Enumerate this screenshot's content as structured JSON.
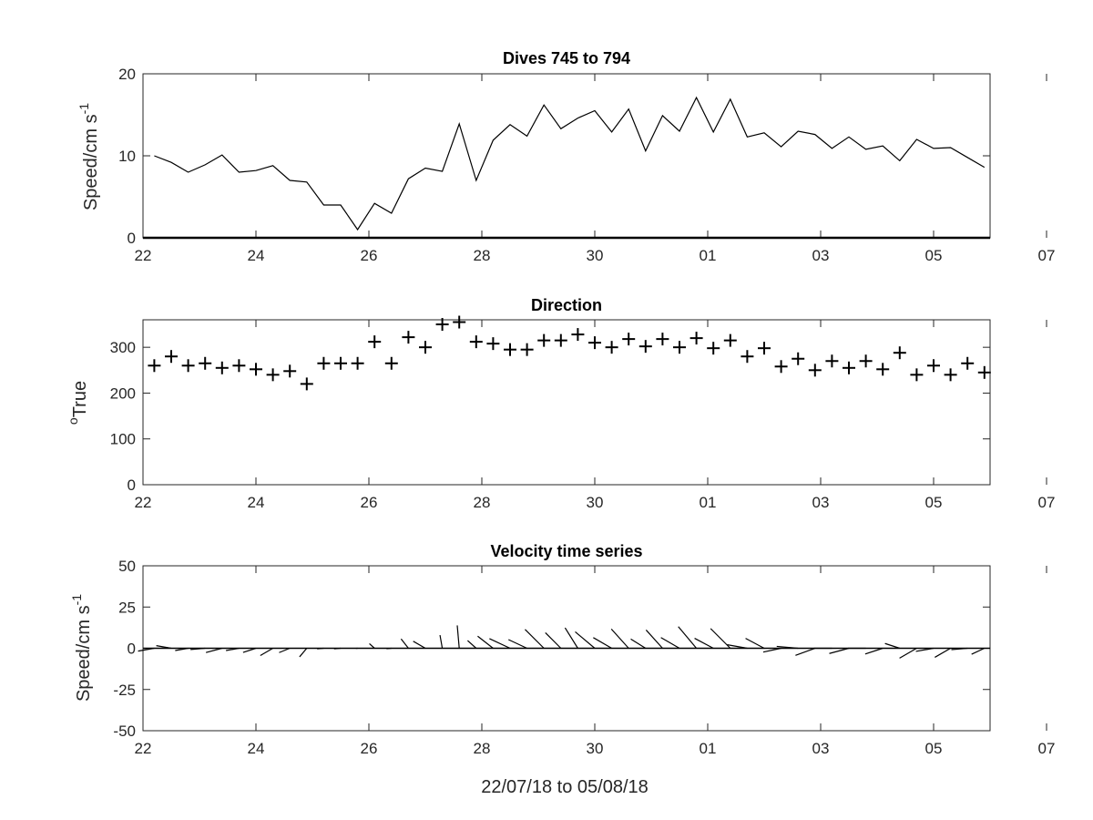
{
  "chart_data": [
    {
      "type": "line",
      "title": "Dives 745 to 794",
      "ylabel": "Speed/cm s",
      "ylabel_superscript": "-1",
      "ylim": [
        0,
        20
      ],
      "yticks": [
        0,
        10,
        20
      ],
      "xlim_days": [
        22,
        37
      ],
      "xticks": [
        "22",
        "24",
        "26",
        "28",
        "30",
        "01",
        "03",
        "05",
        "07"
      ],
      "grid": false,
      "series": [
        {
          "x": [
            22.2,
            22.5,
            22.8,
            23.1,
            23.4,
            23.7,
            24.0,
            24.3,
            24.6,
            24.9,
            25.2,
            25.5,
            25.8,
            26.1,
            26.4,
            26.7,
            27.0,
            27.3,
            27.6,
            27.9,
            28.2,
            28.5,
            28.8,
            29.1,
            29.4,
            29.7,
            30.0,
            30.3,
            30.6,
            30.9,
            31.2,
            31.5,
            31.8,
            32.1,
            32.4,
            32.7,
            33.0,
            33.3,
            33.6,
            33.9,
            34.2,
            34.5,
            34.8,
            35.1,
            35.4,
            35.7,
            36.0,
            36.3,
            36.6,
            36.9
          ],
          "values": [
            10.0,
            9.2,
            8.0,
            8.9,
            10.1,
            8.0,
            8.2,
            8.8,
            7.0,
            6.8,
            4.0,
            4.0,
            1.0,
            4.2,
            3.0,
            7.2,
            8.5,
            8.1,
            13.9,
            7.0,
            11.9,
            13.8,
            12.4,
            16.2,
            13.3,
            14.6,
            15.5,
            12.9,
            15.7,
            10.6,
            14.9,
            13.0,
            17.1,
            12.9,
            16.9,
            12.3,
            12.8,
            11.1,
            13.0,
            12.6,
            10.9,
            12.3,
            10.8,
            11.2,
            9.4,
            12.0,
            10.9,
            11.0,
            9.8,
            8.6
          ]
        }
      ]
    },
    {
      "type": "scatter",
      "title": "Direction",
      "ylabel": "True",
      "ylabel_prefix": "o",
      "ylim": [
        0,
        360
      ],
      "yticks": [
        0,
        100,
        200,
        300
      ],
      "xlim_days": [
        22,
        37
      ],
      "xticks": [
        "22",
        "24",
        "26",
        "28",
        "30",
        "01",
        "03",
        "05",
        "07"
      ],
      "marker": "+",
      "grid": false,
      "series": [
        {
          "x": [
            22.2,
            22.5,
            22.8,
            23.1,
            23.4,
            23.7,
            24.0,
            24.3,
            24.6,
            24.9,
            25.2,
            25.5,
            25.8,
            26.1,
            26.4,
            26.7,
            27.0,
            27.3,
            27.6,
            27.9,
            28.2,
            28.5,
            28.8,
            29.1,
            29.4,
            29.7,
            30.0,
            30.3,
            30.6,
            30.9,
            31.2,
            31.5,
            31.8,
            32.1,
            32.4,
            32.7,
            33.0,
            33.3,
            33.6,
            33.9,
            34.2,
            34.5,
            34.8,
            35.1,
            35.4,
            35.7,
            36.0,
            36.3,
            36.6,
            36.9
          ],
          "values": [
            260,
            280,
            260,
            265,
            255,
            260,
            252,
            240,
            248,
            220,
            265,
            265,
            265,
            312,
            265,
            322,
            300,
            350,
            355,
            312,
            308,
            295,
            295,
            315,
            315,
            328,
            310,
            300,
            318,
            302,
            318,
            300,
            320,
            298,
            315,
            280,
            298,
            258,
            275,
            250,
            270,
            255,
            270,
            252,
            288,
            240,
            260,
            240,
            265,
            245
          ]
        }
      ]
    },
    {
      "type": "line",
      "subtype": "stick-vectors",
      "title": "Velocity time series",
      "ylabel": "Speed/cm s",
      "ylabel_superscript": "-1",
      "xlabel": "22/07/18 to 05/08/18",
      "ylim": [
        -50,
        50
      ],
      "yticks": [
        -50,
        -25,
        0,
        25,
        50
      ],
      "xlim_days": [
        22,
        37
      ],
      "xticks": [
        "22",
        "24",
        "26",
        "28",
        "30",
        "01",
        "03",
        "05",
        "07"
      ],
      "grid": false,
      "series": [
        {
          "x": [
            22.2,
            22.5,
            22.8,
            23.1,
            23.4,
            23.7,
            24.0,
            24.3,
            24.6,
            24.9,
            25.2,
            25.5,
            25.8,
            26.1,
            26.4,
            26.7,
            27.0,
            27.3,
            27.6,
            27.9,
            28.2,
            28.5,
            28.8,
            29.1,
            29.4,
            29.7,
            30.0,
            30.3,
            30.6,
            30.9,
            31.2,
            31.5,
            31.8,
            32.1,
            32.4,
            32.7,
            33.0,
            33.3,
            33.6,
            33.9,
            34.2,
            34.5,
            34.8,
            35.1,
            35.4,
            35.7,
            36.0,
            36.3,
            36.6,
            36.9
          ],
          "speed": [
            10.0,
            9.2,
            8.0,
            8.9,
            10.1,
            8.0,
            8.2,
            8.8,
            7.0,
            6.8,
            4.0,
            4.0,
            1.0,
            4.2,
            3.0,
            7.2,
            8.5,
            8.1,
            13.9,
            7.0,
            11.9,
            13.8,
            12.4,
            16.2,
            13.3,
            14.6,
            15.5,
            12.9,
            15.7,
            10.6,
            14.9,
            13.0,
            17.1,
            12.9,
            16.9,
            12.3,
            12.8,
            11.1,
            13.0,
            12.6,
            10.9,
            12.3,
            10.8,
            11.2,
            9.4,
            12.0,
            10.9,
            11.0,
            9.8,
            8.6
          ],
          "direction_deg": [
            260,
            280,
            260,
            265,
            255,
            260,
            252,
            240,
            248,
            220,
            265,
            265,
            265,
            312,
            265,
            322,
            300,
            350,
            355,
            312,
            308,
            295,
            295,
            315,
            315,
            328,
            310,
            300,
            318,
            302,
            318,
            300,
            320,
            298,
            315,
            280,
            298,
            258,
            275,
            250,
            270,
            255,
            270,
            252,
            288,
            240,
            260,
            240,
            265,
            245
          ]
        }
      ]
    }
  ]
}
